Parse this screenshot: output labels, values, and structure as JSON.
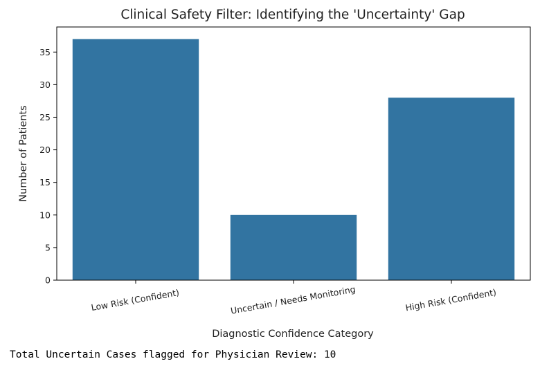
{
  "chart_data": {
    "type": "bar",
    "title": "Clinical Safety Filter: Identifying the 'Uncertainty' Gap",
    "xlabel": "Diagnostic Confidence Category",
    "ylabel": "Number of Patients",
    "categories": [
      "Low Risk (Confident)",
      "Uncertain / Needs Monitoring",
      "High Risk (Confident)"
    ],
    "values": [
      37,
      10,
      28
    ],
    "ylim": [
      0,
      38.85
    ],
    "yticks": [
      0,
      5,
      10,
      15,
      20,
      25,
      30,
      35
    ],
    "x_tick_rotation_deg": -10,
    "grid": false,
    "legend": "none",
    "colors": {
      "bar": "#3274a1",
      "axis": "#000000",
      "text": "#222222"
    }
  },
  "output": {
    "text": "Total Uncertain Cases flagged for Physician Review: 10"
  }
}
